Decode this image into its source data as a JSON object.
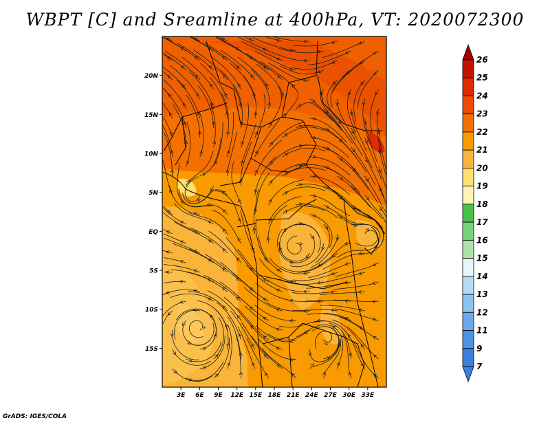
{
  "title": "WBPT [C] and Sreamline at 400hPa, VT: 2020072300",
  "credit": "GrADS: IGES/COLA",
  "map": {
    "lon_range": [
      0,
      36
    ],
    "lat_range": [
      -20,
      25
    ],
    "lat_ticks": [
      "20N",
      "15N",
      "10N",
      "5N",
      "EQ",
      "5S",
      "10S",
      "15S"
    ],
    "lat_values": [
      20,
      15,
      10,
      5,
      0,
      -5,
      -10,
      -15
    ],
    "lon_ticks": [
      "3E",
      "6E",
      "9E",
      "12E",
      "15E",
      "18E",
      "21E",
      "24E",
      "27E",
      "30E",
      "33E"
    ],
    "lon_values": [
      3,
      6,
      9,
      12,
      15,
      18,
      21,
      24,
      27,
      30,
      33
    ]
  },
  "colorbar": {
    "labels": [
      "26",
      "25",
      "24",
      "23",
      "22",
      "21",
      "20",
      "19",
      "18",
      "17",
      "16",
      "15",
      "14",
      "13",
      "12",
      "11",
      "9",
      "7"
    ],
    "colors": [
      "#a50000",
      "#c41200",
      "#e02a00",
      "#f04a00",
      "#f47000",
      "#f89a00",
      "#fbb43a",
      "#fde070",
      "#fef6b0",
      "#48c048",
      "#78d478",
      "#a8e4a8",
      "#e6f6fa",
      "#b4dcf4",
      "#8ac4ee",
      "#6aaaea",
      "#4e92e6",
      "#3c80e2"
    ]
  }
}
